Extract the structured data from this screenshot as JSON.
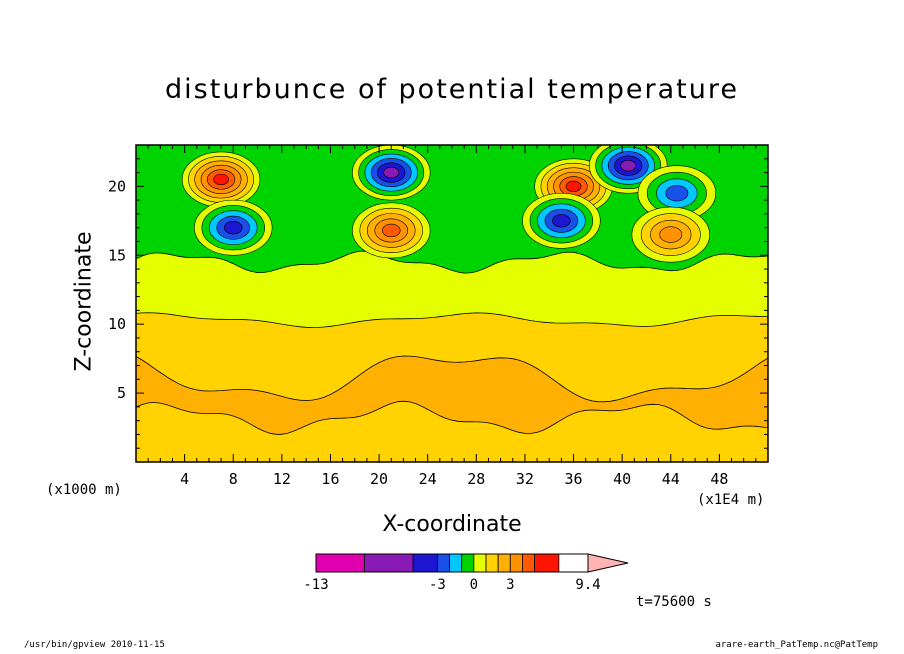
{
  "title": "disturbunce of potential temperature",
  "xlabel": "X-coordinate",
  "ylabel": "Z-coordinate",
  "x_unit": "(x1E4 m)",
  "y_unit": "(x1000 m)",
  "time_label": "t=75600 s",
  "footer_left": "/usr/bin/gpview  2010-11-15",
  "footer_right": "arare-earth_PatTemp.nc@PatTemp",
  "colors": {
    "levels": [
      "#e000b0",
      "#8a1ab5",
      "#1c16d0",
      "#1850e8",
      "#00c8ff",
      "#00d400",
      "#e6ff00",
      "#ffd200",
      "#ffb000",
      "#ff9200",
      "#ff5a00",
      "#ff1400",
      "#ff7070"
    ],
    "outline": "#000000"
  },
  "chart_data": {
    "type": "heatmap",
    "x_range": [
      0,
      52
    ],
    "y_range": [
      0,
      23
    ],
    "x_ticks": [
      4,
      8,
      12,
      16,
      20,
      24,
      28,
      32,
      36,
      40,
      44,
      48
    ],
    "y_ticks": [
      5,
      10,
      15,
      20
    ],
    "colorbar": {
      "min": -13,
      "max": 9.4,
      "tick_labels": [
        "-13",
        "-3",
        "0",
        "3",
        "9.4"
      ],
      "tick_values": [
        -13,
        -3,
        0,
        3,
        9.4
      ]
    },
    "features": [
      {
        "x": 7,
        "z": 20.5,
        "value": 6
      },
      {
        "x": 21,
        "z": 21,
        "value": -7
      },
      {
        "x": 8,
        "z": 17,
        "value": -4
      },
      {
        "x": 21,
        "z": 16.8,
        "value": 3
      },
      {
        "x": 36,
        "z": 20,
        "value": 5
      },
      {
        "x": 35,
        "z": 17.5,
        "value": -4
      },
      {
        "x": 40.5,
        "z": 21.5,
        "value": -6
      },
      {
        "x": 44.5,
        "z": 19.5,
        "value": -2
      },
      {
        "x": 44,
        "z": 16.5,
        "value": 2
      }
    ]
  }
}
